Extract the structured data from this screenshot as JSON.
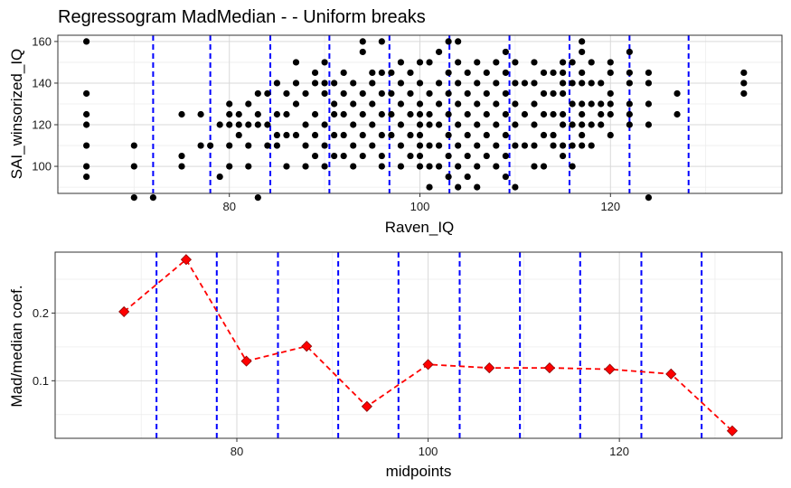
{
  "chart_data": [
    {
      "type": "scatter",
      "title": "Regressogram MadMedian - - Uniform breaks",
      "xlabel": "Raven_IQ",
      "ylabel": "SAI_winsorized_IQ",
      "xlim": [
        62,
        138
      ],
      "ylim": [
        87,
        163
      ],
      "x_ticks": [
        80,
        100,
        120
      ],
      "y_ticks": [
        100,
        120,
        140,
        160
      ],
      "grid": true,
      "point_color": "#000000",
      "breaks": [
        72,
        78,
        84.3,
        90.5,
        96.8,
        103.1,
        109.4,
        115.7,
        122,
        128.2
      ],
      "break_color": "#0000ff",
      "points": [
        [
          65,
          160
        ],
        [
          65,
          135
        ],
        [
          65,
          125
        ],
        [
          65,
          120
        ],
        [
          65,
          110
        ],
        [
          65,
          100
        ],
        [
          65,
          95
        ],
        [
          70,
          110
        ],
        [
          70,
          100
        ],
        [
          70,
          85
        ],
        [
          72,
          85
        ],
        [
          75,
          125
        ],
        [
          75,
          105
        ],
        [
          75,
          100
        ],
        [
          77,
          125
        ],
        [
          77,
          110
        ],
        [
          78,
          110
        ],
        [
          79,
          120
        ],
        [
          79,
          95
        ],
        [
          80,
          130
        ],
        [
          80,
          125
        ],
        [
          80,
          120
        ],
        [
          80,
          110
        ],
        [
          80,
          100
        ],
        [
          81,
          125
        ],
        [
          81,
          120
        ],
        [
          81,
          115
        ],
        [
          82,
          130
        ],
        [
          82,
          120
        ],
        [
          82,
          110
        ],
        [
          82,
          100
        ],
        [
          83,
          135
        ],
        [
          83,
          125
        ],
        [
          83,
          120
        ],
        [
          83,
          85
        ],
        [
          84,
          135
        ],
        [
          84,
          120
        ],
        [
          84,
          110
        ],
        [
          85,
          140
        ],
        [
          85,
          125
        ],
        [
          85,
          115
        ],
        [
          85,
          110
        ],
        [
          86,
          135
        ],
        [
          86,
          125
        ],
        [
          86,
          115
        ],
        [
          86,
          100
        ],
        [
          87,
          150
        ],
        [
          87,
          140
        ],
        [
          87,
          130
        ],
        [
          87,
          115
        ],
        [
          88,
          135
        ],
        [
          88,
          120
        ],
        [
          88,
          110
        ],
        [
          88,
          100
        ],
        [
          89,
          145
        ],
        [
          89,
          140
        ],
        [
          89,
          125
        ],
        [
          89,
          115
        ],
        [
          89,
          105
        ],
        [
          90,
          150
        ],
        [
          90,
          140
        ],
        [
          90,
          135
        ],
        [
          90,
          120
        ],
        [
          90,
          110
        ],
        [
          90,
          100
        ],
        [
          91,
          140
        ],
        [
          91,
          130
        ],
        [
          91,
          125
        ],
        [
          91,
          115
        ],
        [
          91,
          105
        ],
        [
          92,
          145
        ],
        [
          92,
          135
        ],
        [
          92,
          125
        ],
        [
          92,
          115
        ],
        [
          92,
          105
        ],
        [
          93,
          140
        ],
        [
          93,
          130
        ],
        [
          93,
          120
        ],
        [
          93,
          110
        ],
        [
          93,
          100
        ],
        [
          94,
          160
        ],
        [
          94,
          155
        ],
        [
          94,
          135
        ],
        [
          94,
          125
        ],
        [
          94,
          115
        ],
        [
          94,
          105
        ],
        [
          95,
          145
        ],
        [
          95,
          140
        ],
        [
          95,
          130
        ],
        [
          95,
          120
        ],
        [
          95,
          110
        ],
        [
          96,
          160
        ],
        [
          96,
          145
        ],
        [
          96,
          135
        ],
        [
          96,
          125
        ],
        [
          96,
          115
        ],
        [
          96,
          105
        ],
        [
          96,
          100
        ],
        [
          97,
          145
        ],
        [
          97,
          135
        ],
        [
          97,
          125
        ],
        [
          97,
          115
        ],
        [
          98,
          150
        ],
        [
          98,
          140
        ],
        [
          98,
          130
        ],
        [
          98,
          120
        ],
        [
          98,
          110
        ],
        [
          98,
          100
        ],
        [
          99,
          145
        ],
        [
          99,
          135
        ],
        [
          99,
          125
        ],
        [
          99,
          115
        ],
        [
          99,
          105
        ],
        [
          100,
          150
        ],
        [
          100,
          140
        ],
        [
          100,
          130
        ],
        [
          100,
          125
        ],
        [
          100,
          120
        ],
        [
          100,
          115
        ],
        [
          100,
          110
        ],
        [
          100,
          105
        ],
        [
          100,
          100
        ],
        [
          101,
          150
        ],
        [
          101,
          135
        ],
        [
          101,
          125
        ],
        [
          101,
          120
        ],
        [
          101,
          110
        ],
        [
          101,
          100
        ],
        [
          101,
          90
        ],
        [
          102,
          155
        ],
        [
          102,
          140
        ],
        [
          102,
          130
        ],
        [
          102,
          120
        ],
        [
          102,
          110
        ],
        [
          102,
          100
        ],
        [
          103,
          160
        ],
        [
          103,
          145
        ],
        [
          103,
          135
        ],
        [
          103,
          125
        ],
        [
          103,
          115
        ],
        [
          103,
          105
        ],
        [
          103,
          95
        ],
        [
          104,
          160
        ],
        [
          104,
          150
        ],
        [
          104,
          140
        ],
        [
          104,
          130
        ],
        [
          104,
          120
        ],
        [
          104,
          110
        ],
        [
          104,
          100
        ],
        [
          104,
          90
        ],
        [
          105,
          145
        ],
        [
          105,
          135
        ],
        [
          105,
          125
        ],
        [
          105,
          115
        ],
        [
          105,
          105
        ],
        [
          105,
          95
        ],
        [
          106,
          150
        ],
        [
          106,
          140
        ],
        [
          106,
          130
        ],
        [
          106,
          120
        ],
        [
          106,
          110
        ],
        [
          106,
          100
        ],
        [
          106,
          90
        ],
        [
          107,
          145
        ],
        [
          107,
          135
        ],
        [
          107,
          125
        ],
        [
          107,
          115
        ],
        [
          107,
          105
        ],
        [
          108,
          150
        ],
        [
          108,
          140
        ],
        [
          108,
          130
        ],
        [
          108,
          120
        ],
        [
          108,
          110
        ],
        [
          108,
          100
        ],
        [
          109,
          155
        ],
        [
          109,
          145
        ],
        [
          109,
          135
        ],
        [
          109,
          125
        ],
        [
          109,
          115
        ],
        [
          109,
          105
        ],
        [
          109,
          95
        ],
        [
          110,
          150
        ],
        [
          110,
          140
        ],
        [
          110,
          130
        ],
        [
          110,
          120
        ],
        [
          110,
          110
        ],
        [
          110,
          90
        ],
        [
          111,
          140
        ],
        [
          111,
          125
        ],
        [
          111,
          110
        ],
        [
          112,
          150
        ],
        [
          112,
          140
        ],
        [
          112,
          130
        ],
        [
          112,
          120
        ],
        [
          112,
          110
        ],
        [
          112,
          100
        ],
        [
          113,
          145
        ],
        [
          113,
          135
        ],
        [
          113,
          125
        ],
        [
          113,
          115
        ],
        [
          113,
          100
        ],
        [
          114,
          145
        ],
        [
          114,
          135
        ],
        [
          114,
          125
        ],
        [
          114,
          115
        ],
        [
          114,
          110
        ],
        [
          115,
          150
        ],
        [
          115,
          145
        ],
        [
          115,
          140
        ],
        [
          115,
          135
        ],
        [
          115,
          125
        ],
        [
          115,
          120
        ],
        [
          115,
          110
        ],
        [
          115,
          105
        ],
        [
          116,
          150
        ],
        [
          116,
          140
        ],
        [
          116,
          130
        ],
        [
          116,
          120
        ],
        [
          116,
          110
        ],
        [
          116,
          100
        ],
        [
          117,
          160
        ],
        [
          117,
          155
        ],
        [
          117,
          145
        ],
        [
          117,
          140
        ],
        [
          117,
          130
        ],
        [
          117,
          125
        ],
        [
          117,
          120
        ],
        [
          117,
          115
        ],
        [
          117,
          110
        ],
        [
          118,
          150
        ],
        [
          118,
          140
        ],
        [
          118,
          130
        ],
        [
          118,
          120
        ],
        [
          118,
          110
        ],
        [
          119,
          140
        ],
        [
          119,
          130
        ],
        [
          119,
          125
        ],
        [
          119,
          120
        ],
        [
          120,
          150
        ],
        [
          120,
          145
        ],
        [
          120,
          135
        ],
        [
          120,
          130
        ],
        [
          120,
          125
        ],
        [
          120,
          115
        ],
        [
          122,
          155
        ],
        [
          122,
          145
        ],
        [
          122,
          140
        ],
        [
          122,
          130
        ],
        [
          122,
          125
        ],
        [
          122,
          120
        ],
        [
          124,
          145
        ],
        [
          124,
          140
        ],
        [
          124,
          130
        ],
        [
          124,
          120
        ],
        [
          124,
          85
        ],
        [
          127,
          135
        ],
        [
          127,
          125
        ],
        [
          134,
          145
        ],
        [
          134,
          140
        ],
        [
          134,
          135
        ]
      ]
    },
    {
      "type": "line",
      "xlabel": "midpoints",
      "ylabel": "Mad/median coef.",
      "xlim": [
        61,
        137
      ],
      "ylim": [
        0.015,
        0.29
      ],
      "x_ticks": [
        80,
        100,
        120
      ],
      "y_ticks": [
        0.1,
        0.2
      ],
      "y_tick_labels": [
        "0.1",
        "0.2"
      ],
      "grid": true,
      "line_color": "#ff0000",
      "marker": "diamond",
      "breaks": [
        71.6,
        77.9,
        84.3,
        90.6,
        96.9,
        103.3,
        109.6,
        115.9,
        122.3,
        128.6
      ],
      "break_color": "#0000ff",
      "x": [
        68.2,
        74.7,
        81.0,
        87.3,
        93.6,
        100.0,
        106.4,
        112.7,
        119.0,
        125.4,
        131.8
      ],
      "y": [
        0.202,
        0.279,
        0.129,
        0.151,
        0.062,
        0.124,
        0.119,
        0.119,
        0.117,
        0.11,
        0.026
      ]
    }
  ]
}
